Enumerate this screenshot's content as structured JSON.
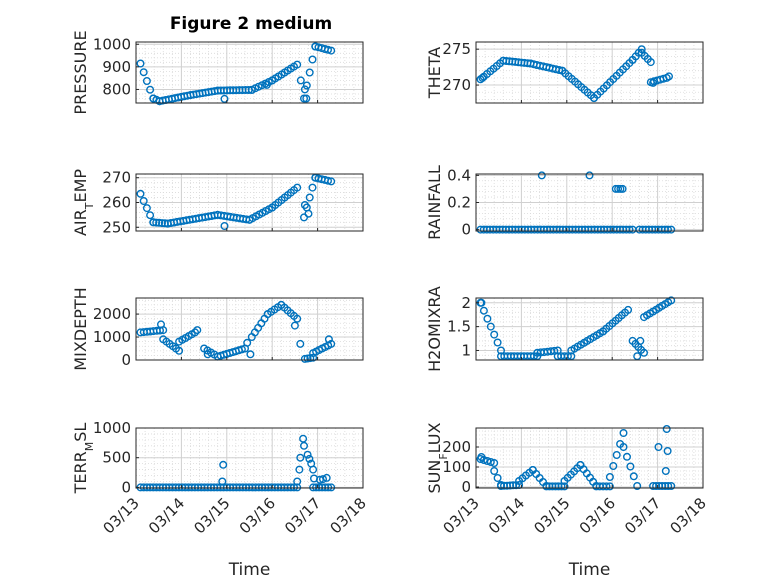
{
  "figure": {
    "title": "Figure 2 medium"
  },
  "colors": {
    "marker": "#0072BD",
    "axis": "#262626",
    "grid": "#d9d9d9"
  },
  "chart_data": [
    {
      "type": "scatter",
      "ylabel_main": "PRESSURE",
      "ylabel_sub": "",
      "ylabel_rest": "",
      "ylim": [
        740,
        1010
      ],
      "yticks": [
        800,
        900,
        1000
      ],
      "xlim": [
        0,
        5
      ],
      "xticks": [
        "03/13",
        "03/14",
        "03/15",
        "03/16",
        "03/17",
        "03/18"
      ],
      "xlabel": "",
      "grid": true,
      "segments": [
        {
          "x0": 0.1,
          "x1": 0.38,
          "y0": 915,
          "y1": 760
        },
        {
          "x0": 0.38,
          "x1": 0.52,
          "y0": 760,
          "y1": 748
        },
        {
          "x0": 0.52,
          "x1": 1.2,
          "y0": 748,
          "y1": 775
        },
        {
          "x0": 1.2,
          "x1": 1.8,
          "y0": 775,
          "y1": 795
        },
        {
          "x0": 1.8,
          "x1": 2.55,
          "y0": 795,
          "y1": 798
        },
        {
          "x0": 2.55,
          "x1": 3.0,
          "y0": 798,
          "y1": 840
        },
        {
          "x0": 3.0,
          "x1": 3.55,
          "y0": 840,
          "y1": 910
        },
        {
          "x0": 3.7,
          "x1": 3.95,
          "y0": 760,
          "y1": 990
        },
        {
          "x0": 3.95,
          "x1": 4.3,
          "y0": 990,
          "y1": 972
        }
      ],
      "points": [
        {
          "x": 1.95,
          "y": 758
        },
        {
          "x": 3.72,
          "y": 800
        },
        {
          "x": 3.75,
          "y": 760
        },
        {
          "x": 3.63,
          "y": 840
        },
        {
          "x": 2.88,
          "y": 820
        }
      ]
    },
    {
      "type": "scatter",
      "ylabel_main": "THETA",
      "ylabel_sub": "",
      "ylabel_rest": "",
      "ylim": [
        267.5,
        276
      ],
      "yticks": [
        270,
        275
      ],
      "xlim": [
        0,
        5
      ],
      "xticks": [
        "03/13",
        "03/14",
        "03/15",
        "03/16",
        "03/17",
        "03/18"
      ],
      "xlabel": "",
      "grid": true,
      "segments": [
        {
          "x0": 0.1,
          "x1": 0.6,
          "y0": 270.8,
          "y1": 273.4
        },
        {
          "x0": 0.6,
          "x1": 1.2,
          "y0": 273.4,
          "y1": 273.0
        },
        {
          "x0": 1.2,
          "x1": 1.9,
          "y0": 273.0,
          "y1": 272.0
        },
        {
          "x0": 1.9,
          "x1": 2.6,
          "y0": 272.0,
          "y1": 268.2
        },
        {
          "x0": 2.6,
          "x1": 3.45,
          "y0": 268.2,
          "y1": 273.5
        },
        {
          "x0": 3.45,
          "x1": 3.65,
          "y0": 273.5,
          "y1": 275.0
        },
        {
          "x0": 3.65,
          "x1": 3.85,
          "y0": 274.5,
          "y1": 273.2
        },
        {
          "x0": 3.85,
          "x1": 4.2,
          "y0": 270.4,
          "y1": 271.0
        }
      ],
      "points": [
        {
          "x": 0.14,
          "y": 271.0
        },
        {
          "x": 4.25,
          "y": 271.2
        },
        {
          "x": 3.9,
          "y": 270.3
        }
      ]
    },
    {
      "type": "scatter",
      "ylabel_main": "AIR",
      "ylabel_sub": "T",
      "ylabel_rest": "EMP",
      "ylim": [
        248.5,
        271.5
      ],
      "yticks": [
        250,
        260,
        270
      ],
      "xlim": [
        0,
        5
      ],
      "xticks": [
        "03/13",
        "03/14",
        "03/15",
        "03/16",
        "03/17",
        "03/18"
      ],
      "xlabel": "",
      "grid": true,
      "segments": [
        {
          "x0": 0.1,
          "x1": 0.38,
          "y0": 263.5,
          "y1": 252.0
        },
        {
          "x0": 0.38,
          "x1": 0.7,
          "y0": 252.0,
          "y1": 251.5
        },
        {
          "x0": 0.7,
          "x1": 1.8,
          "y0": 251.5,
          "y1": 255.0
        },
        {
          "x0": 1.8,
          "x1": 2.5,
          "y0": 255.0,
          "y1": 253.0
        },
        {
          "x0": 2.5,
          "x1": 3.0,
          "y0": 253.0,
          "y1": 258.0
        },
        {
          "x0": 3.0,
          "x1": 3.55,
          "y0": 258.0,
          "y1": 266.0
        },
        {
          "x0": 3.7,
          "x1": 3.95,
          "y0": 254.0,
          "y1": 270.0
        },
        {
          "x0": 3.95,
          "x1": 4.3,
          "y0": 270.0,
          "y1": 268.5
        }
      ],
      "points": [
        {
          "x": 1.95,
          "y": 250.5
        },
        {
          "x": 3.72,
          "y": 259.0
        },
        {
          "x": 3.8,
          "y": 255.5
        }
      ]
    },
    {
      "type": "scatter",
      "ylabel_main": "RAINFALL",
      "ylabel_sub": "",
      "ylabel_rest": "",
      "ylim": [
        -0.01,
        0.41
      ],
      "yticks": [
        0,
        0.2,
        0.4
      ],
      "xlim": [
        0,
        5
      ],
      "xticks": [
        "03/13",
        "03/14",
        "03/15",
        "03/16",
        "03/17",
        "03/18"
      ],
      "xlabel": "",
      "grid": true,
      "segments": [
        {
          "x0": 0.1,
          "x1": 3.45,
          "y0": 0,
          "y1": 0
        },
        {
          "x0": 3.6,
          "x1": 4.3,
          "y0": 0,
          "y1": 0
        }
      ],
      "points": [
        {
          "x": 1.45,
          "y": 0.4
        },
        {
          "x": 2.5,
          "y": 0.4
        },
        {
          "x": 3.08,
          "y": 0.3
        },
        {
          "x": 3.13,
          "y": 0.3
        },
        {
          "x": 3.18,
          "y": 0.3
        },
        {
          "x": 3.23,
          "y": 0.3
        }
      ]
    },
    {
      "type": "scatter",
      "ylabel_main": "MIXDEPTH",
      "ylabel_sub": "",
      "ylabel_rest": "",
      "ylim": [
        0,
        2700
      ],
      "yticks": [
        0,
        1000,
        2000
      ],
      "xlim": [
        0,
        5
      ],
      "xticks": [
        "03/13",
        "03/14",
        "03/15",
        "03/16",
        "03/17",
        "03/18"
      ],
      "xlabel": "",
      "grid": true,
      "segments": [
        {
          "x0": 0.1,
          "x1": 0.6,
          "y0": 1200,
          "y1": 1300
        },
        {
          "x0": 0.6,
          "x1": 0.95,
          "y0": 900,
          "y1": 400
        },
        {
          "x0": 0.95,
          "x1": 1.3,
          "y0": 800,
          "y1": 1200
        },
        {
          "x0": 1.5,
          "x1": 1.8,
          "y0": 500,
          "y1": 150
        },
        {
          "x0": 1.8,
          "x1": 2.4,
          "y0": 150,
          "y1": 500
        },
        {
          "x0": 2.55,
          "x1": 2.9,
          "y0": 1000,
          "y1": 2000
        },
        {
          "x0": 2.9,
          "x1": 3.2,
          "y0": 2000,
          "y1": 2400
        },
        {
          "x0": 3.2,
          "x1": 3.55,
          "y0": 2400,
          "y1": 1800
        },
        {
          "x0": 3.72,
          "x1": 3.9,
          "y0": 50,
          "y1": 100
        },
        {
          "x0": 3.9,
          "x1": 4.3,
          "y0": 300,
          "y1": 700
        }
      ],
      "points": [
        {
          "x": 0.55,
          "y": 1550
        },
        {
          "x": 1.35,
          "y": 1300
        },
        {
          "x": 1.58,
          "y": 250
        },
        {
          "x": 2.45,
          "y": 750
        },
        {
          "x": 2.52,
          "y": 250
        },
        {
          "x": 3.62,
          "y": 700
        },
        {
          "x": 3.5,
          "y": 1500
        },
        {
          "x": 4.25,
          "y": 900
        }
      ]
    },
    {
      "type": "scatter",
      "ylabel_main": "H2OMIXRA",
      "ylabel_sub": "",
      "ylabel_rest": "",
      "ylim": [
        0.8,
        2.1
      ],
      "yticks": [
        1,
        1.5,
        2
      ],
      "xlim": [
        0,
        5
      ],
      "xticks": [
        "03/13",
        "03/14",
        "03/15",
        "03/16",
        "03/17",
        "03/18"
      ],
      "xlabel": "",
      "grid": true,
      "segments": [
        {
          "x0": 0.1,
          "x1": 0.55,
          "y0": 2.0,
          "y1": 1.0
        },
        {
          "x0": 0.55,
          "x1": 1.35,
          "y0": 0.88,
          "y1": 0.88
        },
        {
          "x0": 1.35,
          "x1": 1.8,
          "y0": 0.95,
          "y1": 1.0
        },
        {
          "x0": 1.8,
          "x1": 2.1,
          "y0": 0.88,
          "y1": 0.88
        },
        {
          "x0": 2.1,
          "x1": 2.8,
          "y0": 1.0,
          "y1": 1.4
        },
        {
          "x0": 2.8,
          "x1": 3.35,
          "y0": 1.4,
          "y1": 1.85
        },
        {
          "x0": 3.45,
          "x1": 3.7,
          "y0": 1.2,
          "y1": 0.95
        },
        {
          "x0": 3.7,
          "x1": 4.3,
          "y0": 1.7,
          "y1": 2.05
        }
      ],
      "points": [
        {
          "x": 0.12,
          "y": 2.0
        },
        {
          "x": 3.55,
          "y": 0.88
        },
        {
          "x": 3.62,
          "y": 1.2
        }
      ]
    },
    {
      "type": "scatter",
      "ylabel_main": "TERR",
      "ylabel_sub": "M",
      "ylabel_rest": "SL",
      "ylim": [
        -10,
        1000
      ],
      "yticks": [
        0,
        500,
        1000
      ],
      "xlim": [
        0,
        5
      ],
      "xticks": [
        "03/13",
        "03/14",
        "03/15",
        "03/16",
        "03/17",
        "03/18"
      ],
      "xlabel": "Time",
      "grid": true,
      "segments": [
        {
          "x0": 0.1,
          "x1": 3.55,
          "y0": 0,
          "y1": 0
        },
        {
          "x0": 3.9,
          "x1": 4.3,
          "y0": 0,
          "y1": 0
        }
      ],
      "points": [
        {
          "x": 1.92,
          "y": 380
        },
        {
          "x": 1.9,
          "y": 100
        },
        {
          "x": 3.55,
          "y": 100
        },
        {
          "x": 3.6,
          "y": 300
        },
        {
          "x": 3.62,
          "y": 500
        },
        {
          "x": 3.68,
          "y": 820
        },
        {
          "x": 3.7,
          "y": 700
        },
        {
          "x": 3.78,
          "y": 550
        },
        {
          "x": 3.82,
          "y": 480
        },
        {
          "x": 3.86,
          "y": 400
        },
        {
          "x": 3.9,
          "y": 300
        },
        {
          "x": 3.92,
          "y": 150
        },
        {
          "x": 4.05,
          "y": 130
        },
        {
          "x": 4.12,
          "y": 140
        },
        {
          "x": 4.2,
          "y": 160
        }
      ]
    },
    {
      "type": "scatter",
      "ylabel_main": "SUN",
      "ylabel_sub": "F",
      "ylabel_rest": "LUX",
      "ylim": [
        -5,
        295
      ],
      "yticks": [
        0,
        100,
        200
      ],
      "xlim": [
        0,
        5
      ],
      "xticks": [
        "03/13",
        "03/14",
        "03/15",
        "03/16",
        "03/17",
        "03/18"
      ],
      "xlabel": "Time",
      "grid": true,
      "segments": [
        {
          "x0": 0.1,
          "x1": 0.4,
          "y0": 140,
          "y1": 120
        },
        {
          "x0": 0.4,
          "x1": 0.55,
          "y0": 80,
          "y1": 10
        },
        {
          "x0": 0.55,
          "x1": 0.95,
          "y0": 5,
          "y1": 10
        },
        {
          "x0": 0.95,
          "x1": 1.25,
          "y0": 30,
          "y1": 85
        },
        {
          "x0": 1.25,
          "x1": 1.55,
          "y0": 85,
          "y1": 5
        },
        {
          "x0": 1.55,
          "x1": 1.95,
          "y0": 3,
          "y1": 3
        },
        {
          "x0": 1.95,
          "x1": 2.3,
          "y0": 30,
          "y1": 110
        },
        {
          "x0": 2.3,
          "x1": 2.65,
          "y0": 110,
          "y1": 5
        },
        {
          "x0": 2.65,
          "x1": 2.95,
          "y0": 3,
          "y1": 3
        },
        {
          "x0": 2.95,
          "x1": 3.25,
          "y0": 50,
          "y1": 270
        },
        {
          "x0": 3.25,
          "x1": 3.55,
          "y0": 200,
          "y1": 5
        },
        {
          "x0": 3.9,
          "x1": 4.3,
          "y0": 5,
          "y1": 5
        }
      ],
      "points": [
        {
          "x": 0.12,
          "y": 150
        },
        {
          "x": 4.2,
          "y": 290
        },
        {
          "x": 4.22,
          "y": 180
        },
        {
          "x": 4.18,
          "y": 80
        },
        {
          "x": 4.02,
          "y": 200
        }
      ]
    }
  ]
}
